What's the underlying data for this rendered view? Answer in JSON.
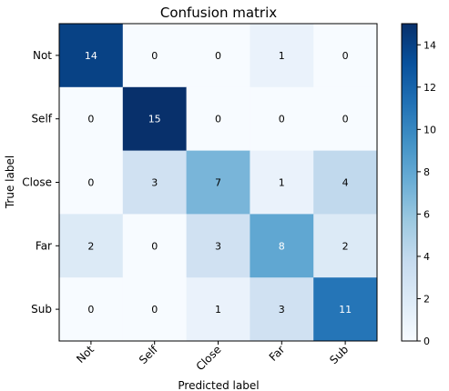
{
  "chart_data": {
    "type": "heatmap",
    "title": "Confusion matrix",
    "xlabel": "Predicted label",
    "ylabel": "True label",
    "x_categories": [
      "Not",
      "Self",
      "Close",
      "Far",
      "Sub"
    ],
    "y_categories": [
      "Not",
      "Self",
      "Close",
      "Far",
      "Sub"
    ],
    "matrix": [
      [
        14,
        0,
        0,
        1,
        0
      ],
      [
        0,
        15,
        0,
        0,
        0
      ],
      [
        0,
        3,
        7,
        1,
        4
      ],
      [
        2,
        0,
        3,
        8,
        2
      ],
      [
        0,
        0,
        1,
        3,
        11
      ]
    ],
    "colormap": "Blues",
    "vmin": 0,
    "vmax": 15,
    "colorbar_ticks": [
      0,
      2,
      4,
      6,
      8,
      10,
      12,
      14
    ],
    "grid": false,
    "colorbar_position": "right"
  }
}
